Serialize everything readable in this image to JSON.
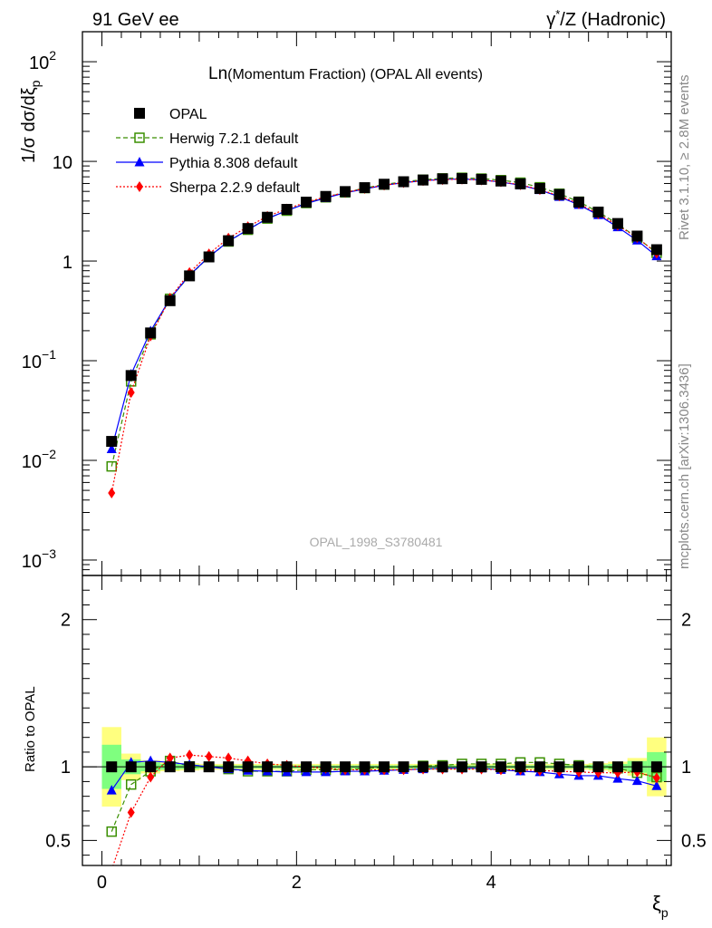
{
  "header": {
    "left": "91 GeV ee",
    "right_base": "γ",
    "right_sup": "*",
    "right_rest": "/Z (Hadronic)"
  },
  "title": {
    "main": "Ln",
    "rest": "(Momentum Fraction) (OPAL All events)"
  },
  "watermark": "OPAL_1998_S3780481",
  "side_text": {
    "rivet": "Rivet 3.1.10, ≥ 2.8M events",
    "mcplots": "mcplots.cern.ch [arXiv:1306.3436]"
  },
  "axes": {
    "main_ylabel": "1/σ dσ/dξ",
    "main_ylabel_sub": "p",
    "ratio_ylabel": "Ratio to OPAL",
    "xlabel": "ξ",
    "xlabel_sub": "p",
    "main_y_ticks": [
      {
        "value": 0.001,
        "base": "10",
        "exp": "−3"
      },
      {
        "value": 0.01,
        "base": "10",
        "exp": "−2"
      },
      {
        "value": 0.1,
        "base": "10",
        "exp": "−1"
      },
      {
        "value": 1,
        "base": "1",
        "exp": ""
      },
      {
        "value": 10,
        "base": "10",
        "exp": ""
      },
      {
        "value": 100,
        "base": "10",
        "exp": "2"
      }
    ],
    "ratio_y_ticks": [
      {
        "value": 0.5,
        "label": "0.5"
      },
      {
        "value": 1,
        "label": "1"
      },
      {
        "value": 2,
        "label": "2"
      }
    ],
    "x_ticks": [
      {
        "value": 0,
        "label": "0"
      },
      {
        "value": 2,
        "label": "2"
      },
      {
        "value": 4,
        "label": "4"
      }
    ]
  },
  "chart_data": {
    "type": "scatter",
    "x_range": [
      -0.2,
      5.85
    ],
    "main_y_range": [
      0.0007,
      200
    ],
    "main_y_scale": "log",
    "ratio_y_range": [
      0.33,
      2.3
    ],
    "legend_position": "top-left",
    "x": [
      0.1,
      0.3,
      0.5,
      0.7,
      0.9,
      1.1,
      1.3,
      1.5,
      1.7,
      1.9,
      2.1,
      2.3,
      2.5,
      2.7,
      2.9,
      3.1,
      3.3,
      3.5,
      3.7,
      3.9,
      4.1,
      4.3,
      4.5,
      4.7,
      4.9,
      5.1,
      5.3,
      5.5,
      5.7
    ],
    "series": [
      {
        "name": "OPAL",
        "color": "#000000",
        "marker": "square-filled",
        "values": [
          0.0155,
          0.071,
          0.19,
          0.4,
          0.71,
          1.1,
          1.6,
          2.12,
          2.75,
          3.3,
          3.9,
          4.45,
          4.98,
          5.45,
          5.9,
          6.25,
          6.5,
          6.68,
          6.72,
          6.6,
          6.35,
          5.95,
          5.35,
          4.65,
          3.9,
          3.1,
          2.38,
          1.78,
          1.3
        ],
        "ratio": [
          1,
          1,
          1,
          1,
          1,
          1,
          1,
          1,
          1,
          1,
          1,
          1,
          1,
          1,
          1,
          1,
          1,
          1,
          1,
          1,
          1,
          1,
          1,
          1,
          1,
          1,
          1,
          1,
          1
        ]
      },
      {
        "name": "Herwig 7.2.1 default",
        "color": "#3a8f00",
        "marker": "square-open",
        "line": "dashed",
        "values": [
          0.0087,
          0.062,
          0.184,
          0.418,
          0.712,
          1.1,
          1.57,
          2.06,
          2.67,
          3.2,
          3.82,
          4.36,
          4.88,
          5.4,
          5.86,
          6.25,
          6.55,
          6.75,
          6.85,
          6.72,
          6.48,
          6.12,
          5.5,
          4.74,
          3.94,
          3.11,
          2.36,
          1.71,
          1.21
        ],
        "ratio": [
          0.56,
          0.88,
          0.97,
          1.04,
          1.003,
          1.0,
          0.985,
          0.97,
          0.97,
          0.97,
          0.98,
          0.98,
          0.98,
          0.99,
          0.995,
          1.0,
          1.007,
          1.01,
          1.02,
          1.02,
          1.02,
          1.03,
          1.03,
          1.02,
          1.01,
          1.0,
          0.99,
          0.96,
          0.93
        ]
      },
      {
        "name": "Pythia 8.308 default",
        "color": "#0000ff",
        "marker": "triangle-filled",
        "line": "solid",
        "values": [
          0.013,
          0.073,
          0.198,
          0.419,
          0.721,
          1.1,
          1.58,
          2.06,
          2.67,
          3.2,
          3.78,
          4.3,
          4.83,
          5.29,
          5.75,
          6.12,
          6.4,
          6.6,
          6.65,
          6.52,
          6.2,
          5.77,
          5.16,
          4.42,
          3.67,
          2.9,
          2.19,
          1.61,
          1.12
        ],
        "ratio": [
          0.84,
          1.03,
          1.04,
          1.03,
          1.015,
          1.0,
          0.985,
          0.975,
          0.97,
          0.965,
          0.965,
          0.965,
          0.97,
          0.97,
          0.975,
          0.98,
          0.985,
          0.99,
          0.99,
          0.99,
          0.98,
          0.97,
          0.965,
          0.95,
          0.94,
          0.94,
          0.92,
          0.905,
          0.87
        ]
      },
      {
        "name": "Sherpa 2.2.9 default",
        "color": "#ff0000",
        "marker": "diamond-filled",
        "line": "dotted",
        "values": [
          0.0047,
          0.048,
          0.177,
          0.424,
          0.767,
          1.18,
          1.7,
          2.21,
          2.81,
          3.33,
          3.9,
          4.4,
          4.88,
          5.34,
          5.78,
          6.12,
          6.4,
          6.56,
          6.62,
          6.5,
          6.23,
          5.83,
          5.21,
          4.51,
          3.76,
          2.98,
          2.28,
          1.72,
          1.2
        ],
        "ratio": [
          0.3,
          0.69,
          0.93,
          1.06,
          1.08,
          1.07,
          1.06,
          1.04,
          1.02,
          1.01,
          1.0,
          0.99,
          0.98,
          0.98,
          0.98,
          0.98,
          0.985,
          0.985,
          0.985,
          0.985,
          0.98,
          0.98,
          0.975,
          0.97,
          0.965,
          0.96,
          0.96,
          0.965,
          0.925
        ]
      }
    ],
    "uncertainty_bands": {
      "inner_color": "#7fff7f",
      "outer_color": "#ffff7f",
      "inner": [
        [
          0.85,
          1.15
        ],
        [
          0.95,
          1.05
        ],
        [
          0.97,
          1.03
        ],
        [
          0.98,
          1.02
        ],
        [
          0.985,
          1.015
        ],
        [
          0.99,
          1.01
        ],
        [
          0.99,
          1.01
        ],
        [
          0.99,
          1.01
        ],
        [
          0.99,
          1.01
        ],
        [
          0.99,
          1.01
        ],
        [
          0.99,
          1.01
        ],
        [
          0.99,
          1.01
        ],
        [
          0.99,
          1.01
        ],
        [
          0.99,
          1.01
        ],
        [
          0.99,
          1.01
        ],
        [
          0.99,
          1.01
        ],
        [
          0.99,
          1.01
        ],
        [
          0.99,
          1.01
        ],
        [
          0.99,
          1.01
        ],
        [
          0.99,
          1.01
        ],
        [
          0.99,
          1.01
        ],
        [
          0.99,
          1.01
        ],
        [
          0.99,
          1.01
        ],
        [
          0.99,
          1.01
        ],
        [
          0.99,
          1.01
        ],
        [
          0.985,
          1.015
        ],
        [
          0.98,
          1.02
        ],
        [
          0.96,
          1.04
        ],
        [
          0.9,
          1.1
        ]
      ],
      "outer": [
        [
          0.73,
          1.27
        ],
        [
          0.91,
          1.09
        ],
        [
          0.955,
          1.045
        ],
        [
          0.97,
          1.03
        ],
        [
          0.975,
          1.025
        ],
        [
          0.98,
          1.02
        ],
        [
          0.98,
          1.02
        ],
        [
          0.98,
          1.02
        ],
        [
          0.98,
          1.02
        ],
        [
          0.98,
          1.02
        ],
        [
          0.98,
          1.02
        ],
        [
          0.98,
          1.02
        ],
        [
          0.98,
          1.02
        ],
        [
          0.98,
          1.02
        ],
        [
          0.98,
          1.02
        ],
        [
          0.98,
          1.02
        ],
        [
          0.98,
          1.02
        ],
        [
          0.98,
          1.02
        ],
        [
          0.98,
          1.02
        ],
        [
          0.98,
          1.02
        ],
        [
          0.98,
          1.02
        ],
        [
          0.98,
          1.02
        ],
        [
          0.98,
          1.02
        ],
        [
          0.98,
          1.02
        ],
        [
          0.98,
          1.02
        ],
        [
          0.975,
          1.025
        ],
        [
          0.965,
          1.035
        ],
        [
          0.94,
          1.06
        ],
        [
          0.8,
          1.2
        ]
      ]
    }
  }
}
